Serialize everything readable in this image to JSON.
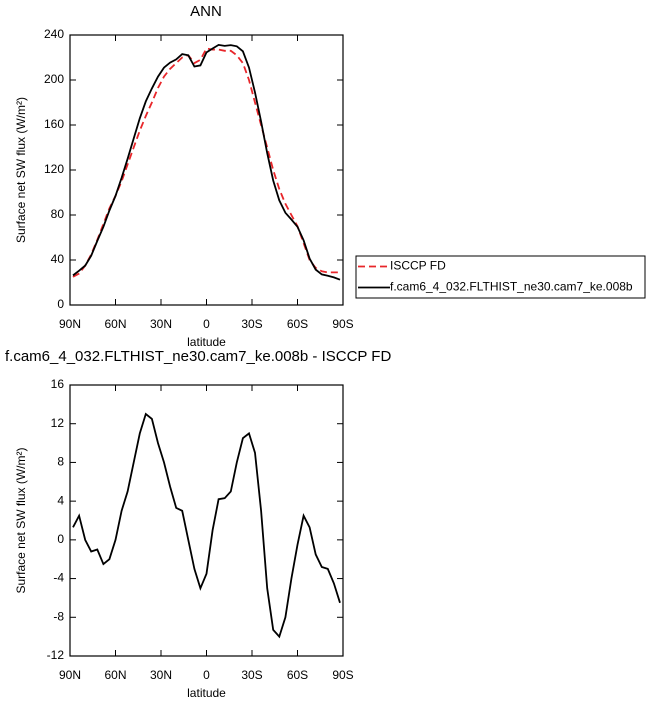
{
  "chart_data": [
    {
      "type": "line",
      "title": "ANN",
      "xlabel": "latitude",
      "ylabel": "Surface net SW flux (W/m²)",
      "x": [
        88,
        84,
        80,
        76,
        72,
        68,
        64,
        60,
        56,
        52,
        48,
        44,
        40,
        36,
        32,
        28,
        24,
        20,
        16,
        12,
        8,
        4,
        0,
        -4,
        -8,
        -12,
        -16,
        -20,
        -24,
        -28,
        -32,
        -36,
        -40,
        -44,
        -48,
        -52,
        -56,
        -60,
        -64,
        -68,
        -72,
        -76,
        -80,
        -84,
        -88
      ],
      "series": [
        {
          "name": "ISCCP FD",
          "color": "#e8262a",
          "line_style": "dashed",
          "values": [
            25,
            28,
            35,
            45,
            58,
            72,
            86,
            97,
            110,
            125,
            140,
            155,
            168,
            180,
            193,
            203,
            210,
            215,
            220,
            222,
            215,
            218,
            228,
            227,
            227,
            226,
            226,
            222,
            215,
            200,
            180,
            160,
            140,
            120,
            103,
            90,
            80,
            70,
            55,
            40,
            33,
            30,
            29,
            29,
            29
          ]
        },
        {
          "name": "f.cam6_4_032.FLTHIST_ne30.cam7_ke.008b",
          "color": "#000000",
          "line_style": "solid",
          "values": [
            26.3,
            30.5,
            35,
            43.8,
            57,
            69.5,
            84,
            97,
            113,
            130,
            148,
            166,
            181,
            192.5,
            203,
            211,
            215.5,
            218.3,
            223,
            222,
            212,
            213,
            224.5,
            228,
            231.2,
            230.3,
            231,
            230,
            225.5,
            211,
            189,
            163,
            135,
            110.7,
            93,
            82,
            76,
            69.5,
            57.5,
            41.3,
            31.5,
            27.2,
            26,
            24.5,
            22.5
          ]
        }
      ],
      "xlim": [
        90,
        -90
      ],
      "xticks": [
        {
          "value": 90,
          "label": "90N"
        },
        {
          "value": 60,
          "label": "60N"
        },
        {
          "value": 30,
          "label": "30N"
        },
        0,
        {
          "value": -30,
          "label": "30S"
        },
        {
          "value": -60,
          "label": "60S"
        },
        {
          "value": -90,
          "label": "90S"
        }
      ],
      "ylim": [
        0,
        240
      ],
      "yticks": [
        0,
        40,
        80,
        120,
        160,
        200,
        240
      ],
      "legend": "right"
    },
    {
      "type": "line",
      "title": "f.cam6_4_032.FLTHIST_ne30.cam7_ke.008b - ISCCP FD",
      "xlabel": "latitude",
      "ylabel": "Surface net SW flux (W/m²)",
      "x": [
        88,
        84,
        80,
        76,
        72,
        68,
        64,
        60,
        56,
        52,
        48,
        44,
        40,
        36,
        32,
        28,
        24,
        20,
        16,
        12,
        8,
        4,
        0,
        -4,
        -8,
        -12,
        -16,
        -20,
        -24,
        -28,
        -32,
        -36,
        -40,
        -44,
        -48,
        -52,
        -56,
        -60,
        -64,
        -68,
        -72,
        -76,
        -80,
        -84,
        -88
      ],
      "series": [
        {
          "color": "#000000",
          "line_style": "solid",
          "values": [
            1.3,
            2.5,
            0,
            -1.2,
            -1,
            -2.5,
            -2,
            0,
            3,
            5,
            8,
            11,
            13,
            12.5,
            10,
            8,
            5.5,
            3.3,
            3,
            0,
            -3,
            -5,
            -3.5,
            1,
            4.2,
            4.3,
            5,
            8,
            10.5,
            11,
            9,
            3,
            -5,
            -9.3,
            -10,
            -8,
            -4,
            -0.5,
            2.5,
            1.3,
            -1.5,
            -2.8,
            -3,
            -4.5,
            -6.5
          ]
        }
      ],
      "xlim": [
        90,
        -90
      ],
      "xticks": [
        {
          "value": 90,
          "label": "90N"
        },
        {
          "value": 60,
          "label": "60N"
        },
        {
          "value": 30,
          "label": "30N"
        },
        0,
        {
          "value": -30,
          "label": "30S"
        },
        {
          "value": -60,
          "label": "60S"
        },
        {
          "value": -90,
          "label": "90S"
        }
      ],
      "ylim": [
        -12,
        16
      ],
      "yticks": [
        -12,
        -8,
        -4,
        0,
        4,
        8,
        12,
        16
      ]
    }
  ]
}
